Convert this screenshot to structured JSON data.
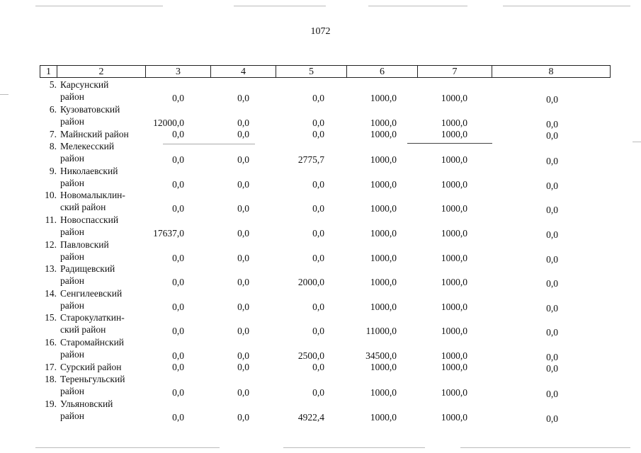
{
  "page_number": "1072",
  "columns": [
    "1",
    "2",
    "3",
    "4",
    "5",
    "6",
    "7",
    "8"
  ],
  "rows": [
    {
      "num": "5.",
      "name": [
        "Карсунский",
        "район"
      ],
      "c3": "0,0",
      "c4": "0,0",
      "c5": "0,0",
      "c6": "1000,0",
      "c7": "1000,0",
      "c8": "0,0"
    },
    {
      "num": "6.",
      "name": [
        "Кузоватовский",
        "район"
      ],
      "c3": "12000,0",
      "c4": "0,0",
      "c5": "0,0",
      "c6": "1000,0",
      "c7": "1000,0",
      "c8": "0,0"
    },
    {
      "num": "7.",
      "name": [
        "Майнский район"
      ],
      "c3": "0,0",
      "c4": "0,0",
      "c5": "0,0",
      "c6": "1000,0",
      "c7": "1000,0",
      "c8": "0,0"
    },
    {
      "num": "8.",
      "name": [
        "Мелекесский",
        "район"
      ],
      "c3": "0,0",
      "c4": "0,0",
      "c5": "2775,7",
      "c6": "1000,0",
      "c7": "1000,0",
      "c8": "0,0"
    },
    {
      "num": "9.",
      "name": [
        "Николаевский",
        "район"
      ],
      "c3": "0,0",
      "c4": "0,0",
      "c5": "0,0",
      "c6": "1000,0",
      "c7": "1000,0",
      "c8": "0,0"
    },
    {
      "num": "10.",
      "name": [
        "Новомалыклин-",
        "ский район"
      ],
      "c3": "0,0",
      "c4": "0,0",
      "c5": "0,0",
      "c6": "1000,0",
      "c7": "1000,0",
      "c8": "0,0"
    },
    {
      "num": "11.",
      "name": [
        "Новоспасский",
        "район"
      ],
      "c3": "17637,0",
      "c4": "0,0",
      "c5": "0,0",
      "c6": "1000,0",
      "c7": "1000,0",
      "c8": "0,0"
    },
    {
      "num": "12.",
      "name": [
        "Павловский",
        "район"
      ],
      "c3": "0,0",
      "c4": "0,0",
      "c5": "0,0",
      "c6": "1000,0",
      "c7": "1000,0",
      "c8": "0,0"
    },
    {
      "num": "13.",
      "name": [
        "Радищевский",
        "район"
      ],
      "c3": "0,0",
      "c4": "0,0",
      "c5": "2000,0",
      "c6": "1000,0",
      "c7": "1000,0",
      "c8": "0,0"
    },
    {
      "num": "14.",
      "name": [
        "Сенгилеевский",
        "район"
      ],
      "c3": "0,0",
      "c4": "0,0",
      "c5": "0,0",
      "c6": "1000,0",
      "c7": "1000,0",
      "c8": "0,0"
    },
    {
      "num": "15.",
      "name": [
        "Старокулаткин-",
        "ский район"
      ],
      "c3": "0,0",
      "c4": "0,0",
      "c5": "0,0",
      "c6": "11000,0",
      "c7": "1000,0",
      "c8": "0,0"
    },
    {
      "num": "16.",
      "name": [
        "Старомайнский",
        "район"
      ],
      "c3": "0,0",
      "c4": "0,0",
      "c5": "2500,0",
      "c6": "34500,0",
      "c7": "1000,0",
      "c8": "0,0"
    },
    {
      "num": "17.",
      "name": [
        "Сурский район"
      ],
      "c3": "0,0",
      "c4": "0,0",
      "c5": "0,0",
      "c6": "1000,0",
      "c7": "1000,0",
      "c8": "0,0"
    },
    {
      "num": "18.",
      "name": [
        "Тереньгульский",
        "район"
      ],
      "c3": "0,0",
      "c4": "0,0",
      "c5": "0,0",
      "c6": "1000,0",
      "c7": "1000,0",
      "c8": "0,0"
    },
    {
      "num": "19.",
      "name": [
        "Ульяновский",
        "район"
      ],
      "c3": "0,0",
      "c4": "0,0",
      "c5": "4922,4",
      "c6": "1000,0",
      "c7": "1000,0",
      "c8": "0,0"
    }
  ]
}
